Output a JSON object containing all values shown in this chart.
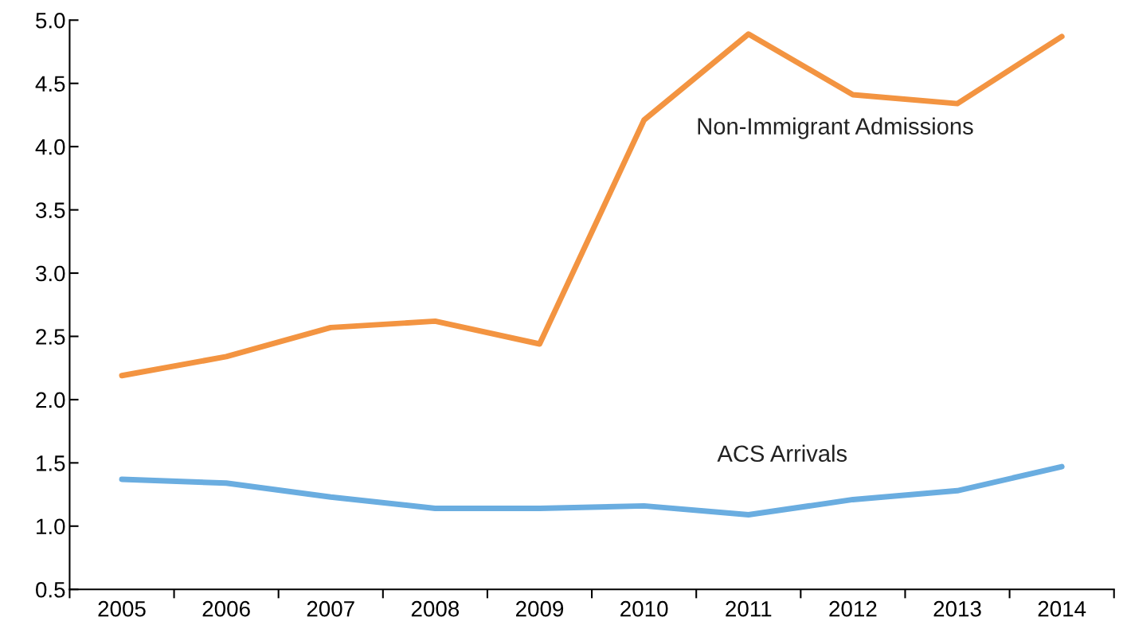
{
  "chart_data": {
    "type": "line",
    "categories": [
      "2005",
      "2006",
      "2007",
      "2008",
      "2009",
      "2010",
      "2011",
      "2012",
      "2013",
      "2014"
    ],
    "series": [
      {
        "name": "Non-Immigrant Admissions",
        "color": "#f39441",
        "values": [
          2.19,
          2.34,
          2.57,
          2.62,
          2.44,
          4.21,
          4.89,
          4.41,
          4.34,
          4.87
        ]
      },
      {
        "name": "ACS Arrivals",
        "color": "#6aade0",
        "values": [
          1.37,
          1.34,
          1.23,
          1.14,
          1.14,
          1.16,
          1.09,
          1.21,
          1.28,
          1.47
        ]
      }
    ],
    "ylim": [
      0.5,
      5.0
    ],
    "yticks": [
      {
        "value": 0.5,
        "label": "0.5"
      },
      {
        "value": 1,
        "label": "1.0"
      },
      {
        "value": 1.5,
        "label": "1.5"
      },
      {
        "value": 2,
        "label": "2.0"
      },
      {
        "value": 2.5,
        "label": "2.5"
      },
      {
        "value": 3,
        "label": "3.0"
      },
      {
        "value": 3.5,
        "label": "3.5"
      },
      {
        "value": 4,
        "label": "4.0"
      },
      {
        "value": 4.5,
        "label": "4.5"
      },
      {
        "value": 5,
        "label": "5.0"
      }
    ],
    "grid": false,
    "legend": false,
    "marker": "none",
    "line_style": "solid"
  }
}
